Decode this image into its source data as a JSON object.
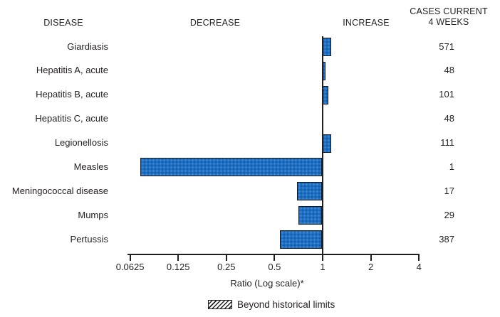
{
  "headers": {
    "disease": "DISEASE",
    "decrease": "DECREASE",
    "increase": "INCREASE",
    "cases_line1": "CASES CURRENT",
    "cases_line2": "4 WEEKS"
  },
  "axis": {
    "label": "Ratio (Log scale)*"
  },
  "legend": {
    "label": "Beyond historical limits",
    "swatch": "diagonal-hatch"
  },
  "colors": {
    "bar_fill": "#1E6EC2",
    "bar_border": "#1C1C1C",
    "text": "#231F20",
    "axis": "#231F20"
  },
  "chart_data": {
    "type": "bar",
    "orientation": "horizontal",
    "x_scale": "log2",
    "title": "",
    "xlabel": "Ratio (Log scale)*",
    "x_ticks": [
      0.0625,
      0.125,
      0.25,
      0.5,
      1,
      2,
      4
    ],
    "xlim": [
      0.0625,
      4
    ],
    "baseline": 1,
    "grid": false,
    "legend_entries": [
      "Beyond historical limits"
    ],
    "legend_position": "bottom",
    "rows": [
      {
        "disease": "Giardiasis",
        "ratio": 1.14,
        "cases_current_4_weeks": 571,
        "beyond_historical_limits": false
      },
      {
        "disease": "Hepatitis A, acute",
        "ratio": 1.05,
        "cases_current_4_weeks": 48,
        "beyond_historical_limits": false
      },
      {
        "disease": "Hepatitis B, acute",
        "ratio": 1.09,
        "cases_current_4_weeks": 101,
        "beyond_historical_limits": false
      },
      {
        "disease": "Hepatitis C, acute",
        "ratio": 1.0,
        "cases_current_4_weeks": 48,
        "beyond_historical_limits": false
      },
      {
        "disease": "Legionellosis",
        "ratio": 1.14,
        "cases_current_4_weeks": 111,
        "beyond_historical_limits": false
      },
      {
        "disease": "Measles",
        "ratio": 0.074,
        "cases_current_4_weeks": 1,
        "beyond_historical_limits": false
      },
      {
        "disease": "Meningococcal disease",
        "ratio": 0.7,
        "cases_current_4_weeks": 17,
        "beyond_historical_limits": false
      },
      {
        "disease": "Mumps",
        "ratio": 0.72,
        "cases_current_4_weeks": 29,
        "beyond_historical_limits": false
      },
      {
        "disease": "Pertussis",
        "ratio": 0.55,
        "cases_current_4_weeks": 387,
        "beyond_historical_limits": false
      }
    ]
  }
}
